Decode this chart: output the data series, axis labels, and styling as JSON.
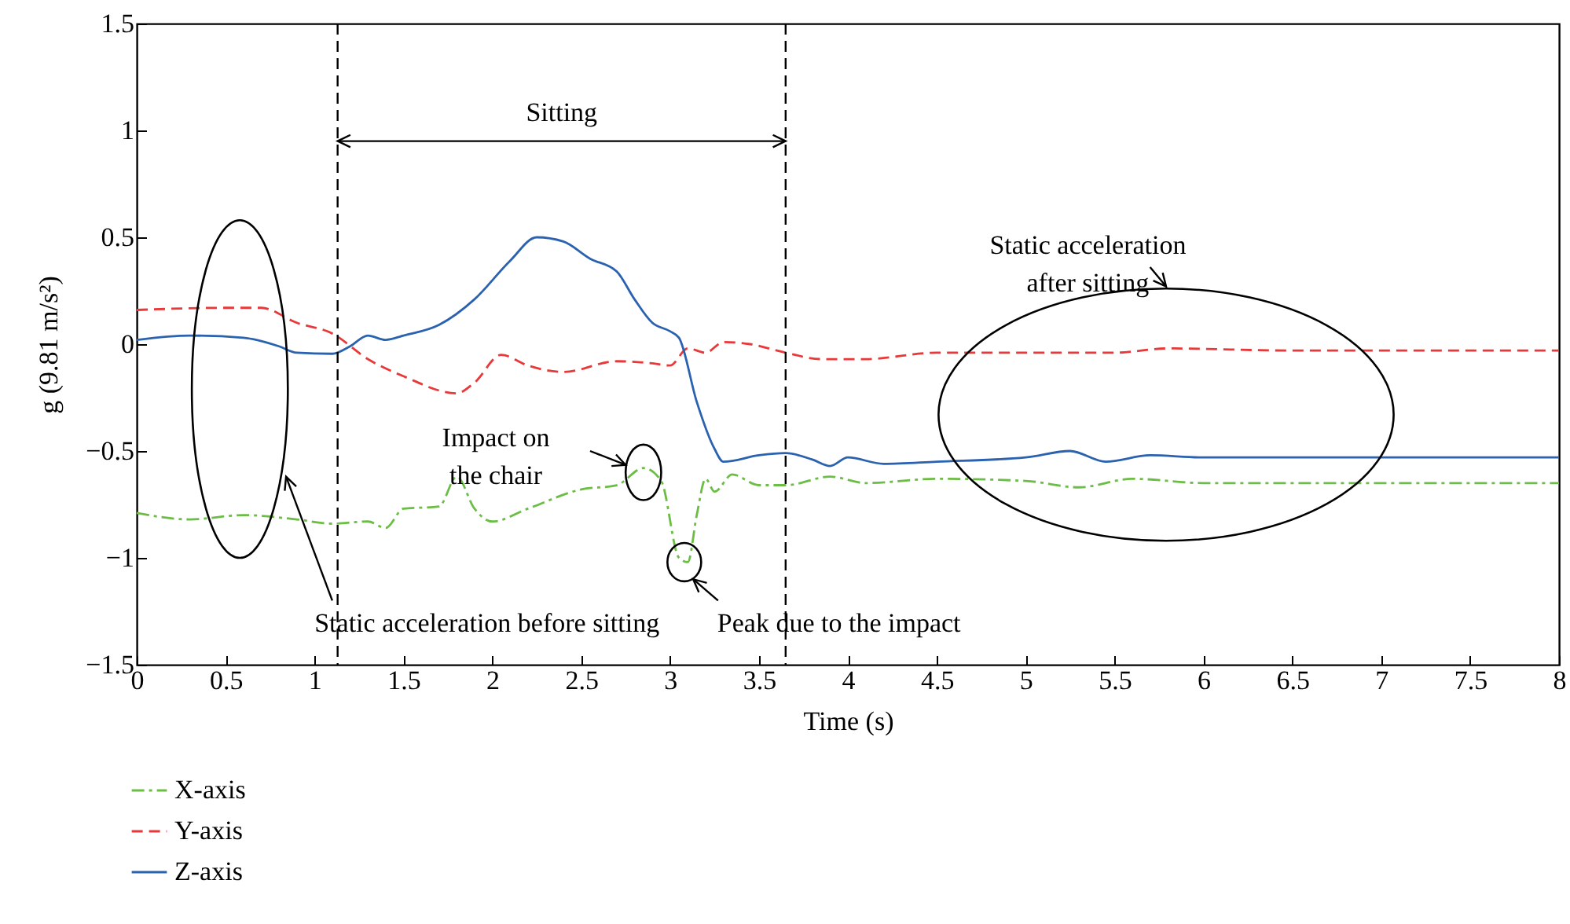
{
  "chart_data": {
    "type": "line",
    "xlabel": "Time (s)",
    "ylabel": "g (9.81 m/s²)",
    "xlim": [
      0,
      8
    ],
    "xticks": [
      0,
      0.5,
      1,
      1.5,
      2,
      2.5,
      3,
      3.5,
      4,
      4.5,
      5,
      5.5,
      6,
      6.5,
      7,
      7.5,
      8
    ],
    "ylim": [
      -1.5,
      1.5
    ],
    "yticks": [
      -1.5,
      -1,
      -0.5,
      0,
      0.5,
      1,
      1.5
    ],
    "grid": false,
    "legend": "bottom left",
    "marker": "none",
    "series": [
      {
        "name": "X-axis",
        "color": "#6cbd45",
        "line_style": "dashdot",
        "x": [
          0,
          0.3,
          0.6,
          0.9,
          1.1,
          1.3,
          1.4,
          1.5,
          1.7,
          1.8,
          1.9,
          2.0,
          2.2,
          2.5,
          2.7,
          2.85,
          2.95,
          3.05,
          3.1,
          3.15,
          3.2,
          3.25,
          3.35,
          3.5,
          3.65,
          3.9,
          4.1,
          4.5,
          5.0,
          5.3,
          5.6,
          6,
          7,
          8
        ],
        "values": [
          -0.79,
          -0.82,
          -0.8,
          -0.82,
          -0.84,
          -0.83,
          -0.86,
          -0.77,
          -0.76,
          -0.62,
          -0.77,
          -0.83,
          -0.77,
          -0.68,
          -0.66,
          -0.58,
          -0.64,
          -1.0,
          -1.02,
          -0.8,
          -0.63,
          -0.69,
          -0.61,
          -0.66,
          -0.66,
          -0.62,
          -0.65,
          -0.63,
          -0.64,
          -0.67,
          -0.63,
          -0.65,
          -0.65,
          -0.65
        ]
      },
      {
        "name": "Y-axis",
        "color": "#e8393a",
        "line_style": "dashed",
        "x": [
          0,
          0.5,
          0.7,
          0.9,
          1.1,
          1.3,
          1.5,
          1.8,
          1.9,
          2.05,
          2.2,
          2.4,
          2.7,
          2.9,
          3.0,
          3.1,
          3.2,
          3.3,
          3.45,
          3.65,
          3.85,
          4.1,
          4.5,
          5,
          5.5,
          5.8,
          6.5,
          7,
          8
        ],
        "values": [
          0.16,
          0.17,
          0.17,
          0.1,
          0.05,
          -0.07,
          -0.15,
          -0.23,
          -0.18,
          -0.05,
          -0.1,
          -0.13,
          -0.08,
          -0.09,
          -0.1,
          -0.02,
          -0.04,
          0.01,
          0,
          -0.04,
          -0.07,
          -0.07,
          -0.04,
          -0.04,
          -0.04,
          -0.02,
          -0.03,
          -0.03,
          -0.03
        ]
      },
      {
        "name": "Z-axis",
        "color": "#2a62b0",
        "line_style": "solid",
        "x": [
          0,
          0.3,
          0.6,
          0.8,
          0.9,
          1.1,
          1.2,
          1.3,
          1.4,
          1.5,
          1.7,
          1.9,
          2.1,
          2.25,
          2.4,
          2.55,
          2.7,
          2.8,
          2.9,
          3.0,
          3.05,
          3.15,
          3.25,
          3.3,
          3.5,
          3.65,
          3.8,
          3.9,
          4.0,
          4.2,
          4.5,
          5.0,
          5.25,
          5.45,
          5.7,
          6,
          7,
          8
        ],
        "values": [
          0.02,
          0.04,
          0.03,
          -0.01,
          -0.04,
          -0.045,
          -0.01,
          0.04,
          0.02,
          0.04,
          0.09,
          0.21,
          0.39,
          0.5,
          0.48,
          0.4,
          0.34,
          0.21,
          0.1,
          0.06,
          0.03,
          -0.27,
          -0.49,
          -0.55,
          -0.52,
          -0.51,
          -0.54,
          -0.57,
          -0.53,
          -0.56,
          -0.55,
          -0.53,
          -0.5,
          -0.55,
          -0.52,
          -0.53,
          -0.53,
          -0.53
        ]
      }
    ],
    "ref_lines": [
      {
        "axis": "x",
        "value": 1.13,
        "color": "#000000",
        "line_style": "dashed"
      },
      {
        "axis": "x",
        "value": 3.65,
        "color": "#000000",
        "line_style": "dashed"
      }
    ],
    "annotations": [
      "Sitting",
      "Impact on the chair",
      {
        "text": "Peak due to the impact",
        "x": 3.08,
        "y": -1.02
      },
      "Static acceleration before sitting",
      "Static acceleration after sitting"
    ]
  }
}
